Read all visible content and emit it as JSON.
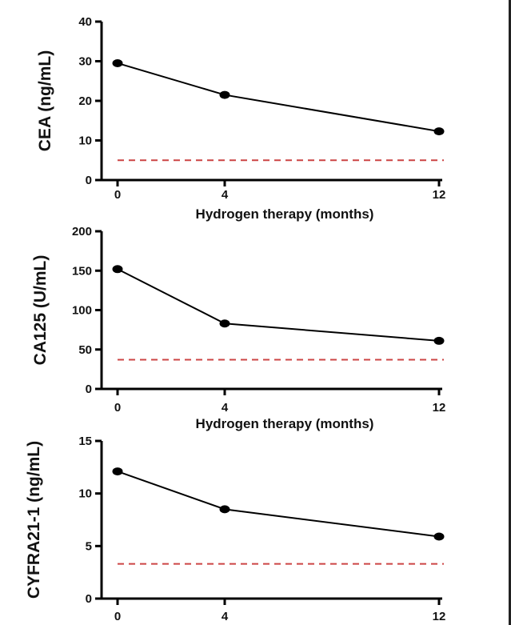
{
  "chart_data": [
    {
      "type": "line",
      "title": "",
      "ylabel": "CEA (ng/mL)",
      "xlabel": "Hydrogen therapy (months)",
      "x": [
        0,
        4,
        12
      ],
      "x_tick_labels": [
        "0",
        "4",
        "12"
      ],
      "y_ticks": [
        0,
        10,
        20,
        30,
        40
      ],
      "ylim": [
        0,
        40
      ],
      "series": [
        {
          "values": [
            29.5,
            21.5,
            12.3
          ]
        }
      ],
      "reference_line": {
        "value": 5,
        "style": "dashed",
        "color": "#cc4444"
      },
      "grid": false
    },
    {
      "type": "line",
      "title": "",
      "ylabel": "CA125 (U/mL)",
      "xlabel": "Hydrogen therapy (months)",
      "x": [
        0,
        4,
        12
      ],
      "x_tick_labels": [
        "0",
        "4",
        "12"
      ],
      "y_ticks": [
        0,
        50,
        100,
        150,
        200
      ],
      "ylim": [
        0,
        200
      ],
      "series": [
        {
          "values": [
            152,
            83,
            61
          ]
        }
      ],
      "reference_line": {
        "value": 37,
        "style": "dashed",
        "color": "#cc4444"
      },
      "grid": false
    },
    {
      "type": "line",
      "title": "",
      "ylabel": "CYFRA21-1 (ng/mL)",
      "xlabel": "",
      "x": [
        0,
        4,
        12
      ],
      "x_tick_labels": [
        "0",
        "4",
        "12"
      ],
      "y_ticks": [
        0,
        5,
        10,
        15
      ],
      "ylim": [
        0,
        15
      ],
      "series": [
        {
          "values": [
            12.1,
            8.5,
            5.9
          ]
        }
      ],
      "reference_line": {
        "value": 3.3,
        "style": "dashed",
        "color": "#cc4444"
      },
      "grid": false
    }
  ],
  "colors": {
    "line": "#000000",
    "marker": "#000000",
    "axis": "#000000",
    "reference": "#cc4444"
  }
}
